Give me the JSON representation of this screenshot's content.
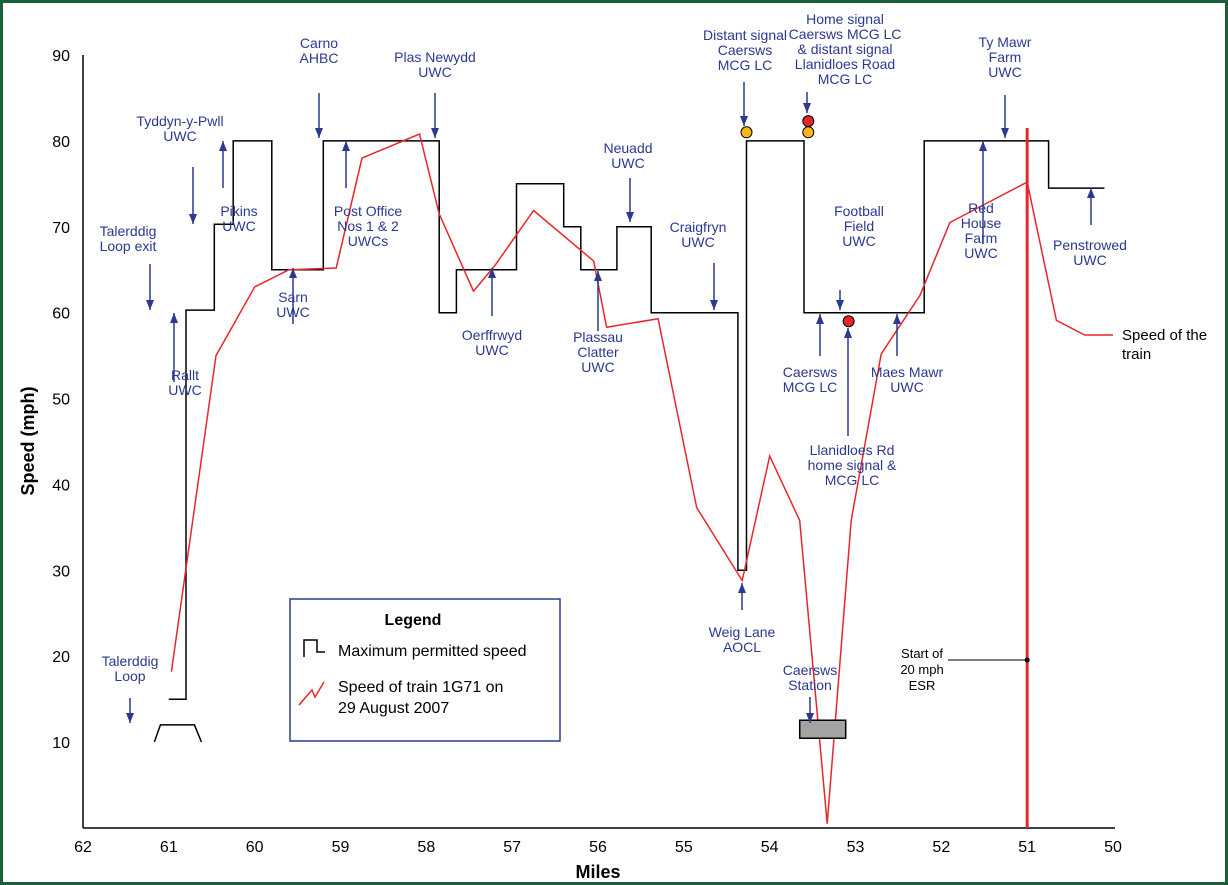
{
  "chart_data": {
    "type": "line",
    "xlabel": "Miles",
    "ylabel": "Speed (mph)",
    "x_reversed": true,
    "xlim": [
      62,
      50
    ],
    "ylim": [
      0,
      90
    ],
    "x_ticks": [
      62,
      61,
      60,
      59,
      58,
      57,
      56,
      55,
      54,
      53,
      52,
      51,
      50
    ],
    "y_ticks": [
      10,
      20,
      30,
      40,
      50,
      60,
      70,
      80,
      90
    ],
    "grid": false,
    "legend": {
      "title": "Legend",
      "placement": "lower-left",
      "entries": [
        "Maximum permitted speed",
        "Speed of train 1G71 on 29 August 2007"
      ]
    },
    "series": [
      {
        "name": "Maximum permitted speed",
        "color": "#000000",
        "style": "step",
        "points": [
          [
            61.0,
            15
          ],
          [
            60.8,
            15
          ],
          [
            60.8,
            60.3
          ],
          [
            60.47,
            60.3
          ],
          [
            60.47,
            70.3
          ],
          [
            60.25,
            70.3
          ],
          [
            60.25,
            80
          ],
          [
            59.8,
            80
          ],
          [
            59.8,
            65
          ],
          [
            59.2,
            65
          ],
          [
            59.2,
            80
          ],
          [
            57.85,
            80
          ],
          [
            57.85,
            60
          ],
          [
            57.65,
            60
          ],
          [
            57.65,
            65
          ],
          [
            56.95,
            65
          ],
          [
            56.95,
            75
          ],
          [
            56.4,
            75
          ],
          [
            56.4,
            70
          ],
          [
            56.2,
            70
          ],
          [
            56.2,
            65
          ],
          [
            55.78,
            65
          ],
          [
            55.78,
            70
          ],
          [
            55.38,
            70
          ],
          [
            55.38,
            60
          ],
          [
            54.37,
            60
          ],
          [
            54.37,
            30
          ],
          [
            54.27,
            30
          ],
          [
            54.27,
            80
          ],
          [
            53.6,
            80
          ],
          [
            53.6,
            60
          ],
          [
            52.2,
            60
          ],
          [
            52.2,
            80
          ],
          [
            50.75,
            80
          ],
          [
            50.75,
            74.5
          ],
          [
            50.1,
            74.5
          ]
        ]
      },
      {
        "name": "Speed of train 1G71 on 29 August 2007",
        "color": "#e8262a",
        "style": "line",
        "points": [
          [
            60.97,
            18.2
          ],
          [
            60.45,
            55
          ],
          [
            60.0,
            63
          ],
          [
            59.6,
            65
          ],
          [
            59.05,
            65.2
          ],
          [
            58.75,
            78
          ],
          [
            58.08,
            80.8
          ],
          [
            57.85,
            71.5
          ],
          [
            57.45,
            62.5
          ],
          [
            57.2,
            65.5
          ],
          [
            56.75,
            71.9
          ],
          [
            56.05,
            66
          ],
          [
            55.9,
            58.3
          ],
          [
            55.3,
            59.3
          ],
          [
            54.85,
            37.3
          ],
          [
            54.32,
            28.8
          ],
          [
            54.0,
            43.3
          ],
          [
            53.65,
            35.8
          ],
          [
            53.33,
            0.5
          ],
          [
            53.05,
            35.8
          ],
          [
            52.7,
            55.2
          ],
          [
            52.25,
            62
          ],
          [
            51.9,
            70.5
          ],
          [
            51.0,
            75.2
          ],
          [
            50.66,
            59.1
          ],
          [
            50.33,
            57.4
          ],
          [
            50.0,
            57.4
          ]
        ]
      }
    ],
    "markers": {
      "esr_mile": 51.0,
      "yellow_circles": [
        [
          54.27,
          81
        ],
        [
          53.55,
          81
        ]
      ],
      "red_circles": [
        [
          53.55,
          82.3
        ],
        [
          53.08,
          59
        ]
      ],
      "loop_symbol": [
        60.9,
        12
      ],
      "station_box": [
        53.65,
        11.5
      ]
    },
    "annotations": [
      {
        "id": "talerddig-loop",
        "lines": [
          "Talerddig",
          "Loop"
        ]
      },
      {
        "id": "talerddig-loop-exit",
        "lines": [
          "Talerddig",
          "Loop exit"
        ]
      },
      {
        "id": "rallt",
        "lines": [
          "Rallt",
          "UWC"
        ]
      },
      {
        "id": "tyddyn",
        "lines": [
          "Tyddyn-y-Pwll",
          "UWC"
        ]
      },
      {
        "id": "pikins",
        "lines": [
          "Pikins",
          "UWC"
        ]
      },
      {
        "id": "sarn",
        "lines": [
          "Sarn",
          "UWC"
        ]
      },
      {
        "id": "carno",
        "lines": [
          "Carno",
          "AHBC"
        ]
      },
      {
        "id": "post-office",
        "lines": [
          "Post Office",
          "Nos 1 & 2",
          "UWCs"
        ]
      },
      {
        "id": "plas-newydd",
        "lines": [
          "Plas Newydd",
          "UWC"
        ]
      },
      {
        "id": "oerffrwyd",
        "lines": [
          "Oerffrwyd",
          "UWC"
        ]
      },
      {
        "id": "plassau",
        "lines": [
          "Plassau",
          "Clatter",
          "UWC"
        ]
      },
      {
        "id": "neuadd",
        "lines": [
          "Neuadd",
          "UWC"
        ]
      },
      {
        "id": "craigfryn",
        "lines": [
          "Craigfryn",
          "UWC"
        ]
      },
      {
        "id": "weig-lane",
        "lines": [
          "Weig Lane",
          "AOCL"
        ]
      },
      {
        "id": "distant-signal",
        "lines": [
          "Distant signal",
          "Caersws",
          "MCG LC"
        ]
      },
      {
        "id": "home-signal",
        "lines": [
          "Home signal",
          "Caersws MCG LC",
          "& distant signal",
          "Llanidloes Road",
          "MCG LC"
        ]
      },
      {
        "id": "caersws-station",
        "lines": [
          "Caersws",
          "Station"
        ]
      },
      {
        "id": "caersws-mcg",
        "lines": [
          "Caersws",
          "MCG LC"
        ]
      },
      {
        "id": "football-field",
        "lines": [
          "Football",
          "Field",
          "UWC"
        ]
      },
      {
        "id": "llanidloes-rd",
        "lines": [
          "Llanidloes Rd",
          "home signal &",
          "MCG LC"
        ]
      },
      {
        "id": "maes-mawr",
        "lines": [
          "Maes Mawr",
          "UWC"
        ]
      },
      {
        "id": "red-house",
        "lines": [
          "Red",
          "House",
          "Farm",
          "UWC"
        ]
      },
      {
        "id": "ty-mawr",
        "lines": [
          "Ty Mawr",
          "Farm",
          "UWC"
        ]
      },
      {
        "id": "penstrowed",
        "lines": [
          "Penstrowed",
          "UWC"
        ]
      },
      {
        "id": "start-esr",
        "lines": [
          "Start of",
          "20 mph",
          "ESR"
        ]
      },
      {
        "id": "speed-of-train",
        "lines": [
          "Speed of the",
          "train"
        ]
      }
    ]
  }
}
